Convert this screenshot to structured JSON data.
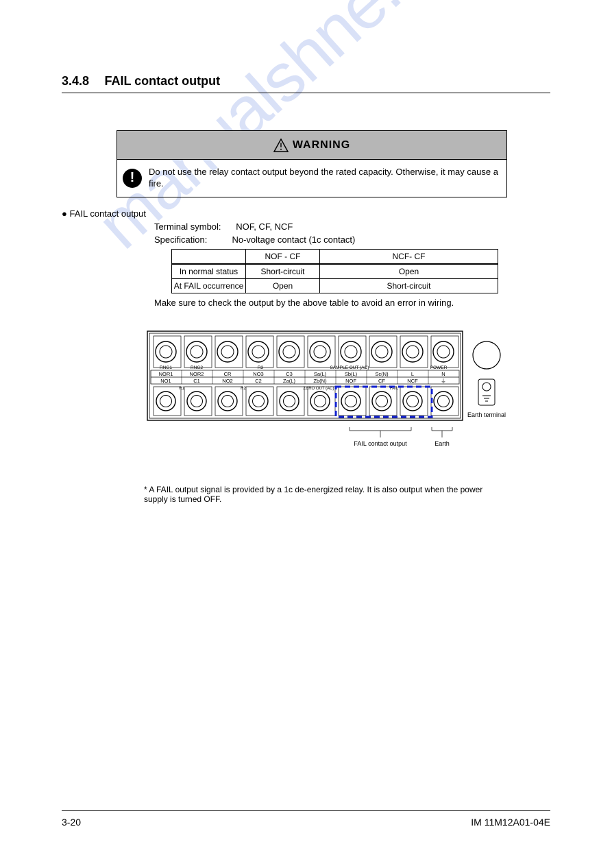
{
  "section": {
    "number": "3.4.8",
    "title": "FAIL contact output"
  },
  "warning": {
    "title": "WARNING",
    "body": "Do not use the relay contact output beyond the rated capacity. Otherwise, it may cause a fire."
  },
  "fail": {
    "line1": "FAIL contact output",
    "line2_label": "Terminal symbol:",
    "line2_value": "NOF, CF, NCF",
    "line3_label": "Specification:",
    "line3_value": "No-voltage contact (1c contact)",
    "table": {
      "headers": [
        "",
        "NOF - CF",
        "NCF- CF"
      ],
      "rows": [
        [
          "In normal status",
          "Short-circuit",
          "Open"
        ],
        [
          "At FAIL occurrence",
          "Open",
          "Short-circuit"
        ]
      ],
      "note_head": "Make sure to check the output by the above table to avoid an error in wiring."
    },
    "note_below": "* A FAIL output signal is provided by a 1c de-energized relay. It is also output when the power supply is turned OFF."
  },
  "diagram": {
    "top_row_labels": [
      "NOR1",
      "NOR2",
      "CR",
      "NO3",
      "C3",
      "Sa(L)",
      "Sb(L)",
      "Sc(N)",
      "L",
      "N"
    ],
    "bottom_row_labels": [
      "NO1",
      "C1",
      "NO2",
      "C2",
      "Za(L)",
      "Zb(N)",
      "NOF",
      "CF",
      "NCF",
      "⏚"
    ],
    "group_labels_top": [
      "RNG1",
      "RNG2",
      "R3",
      "SAMPLE OUT (AC)",
      "POWER"
    ],
    "group_labels_bottom": [
      "R1",
      "R2",
      "ZERO OUT (AC)",
      "FAIL"
    ],
    "caption_right": "Earth terminal",
    "highlight_color": "#1020d0",
    "arrow1": "FAIL contact output",
    "arrow2": "Earth"
  },
  "footer": {
    "page": "3-20",
    "model": "IM 11M12A01-04E"
  },
  "watermark": "manualshne.com"
}
